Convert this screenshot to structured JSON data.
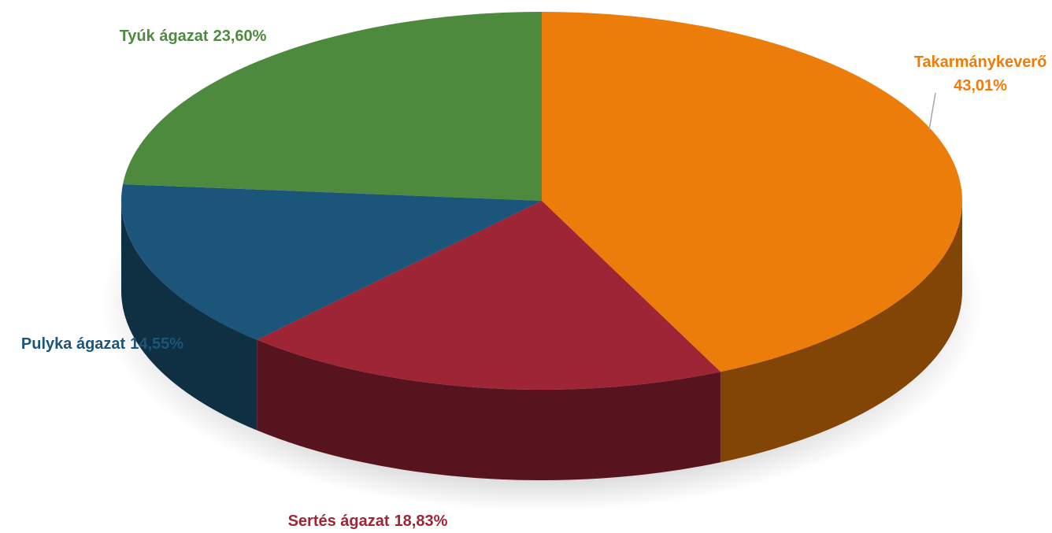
{
  "chart_data": {
    "type": "pie",
    "categories": [
      "Takarmánykeverő",
      "Sertés ágazat",
      "Pulyka ágazat",
      "Tyúk ágazat"
    ],
    "values": [
      43.01,
      18.83,
      14.55,
      23.6
    ],
    "value_labels": [
      "43,01%",
      "18,83%",
      "14,55%",
      "23,60%"
    ],
    "colors": [
      "#ed7d0a",
      "#9e2536",
      "#1b557a",
      "#4e8a3e"
    ]
  }
}
